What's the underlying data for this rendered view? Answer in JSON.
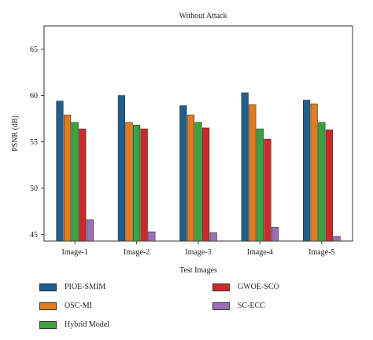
{
  "chart_data": {
    "type": "bar",
    "title": "Without Attack",
    "xlabel": "Test Images",
    "ylabel": "PSNR (dB)",
    "categories": [
      "Image-1",
      "Image-2",
      "Image-3",
      "Image-4",
      "Image-5"
    ],
    "ylim": [
      44.3,
      67.5
    ],
    "yticks": [
      45,
      50,
      55,
      60,
      65
    ],
    "grid": false,
    "legend_position": "below",
    "series": [
      {
        "name": "PIOE-SMIM",
        "color": "#1f5f8b",
        "values": [
          59.4,
          60.0,
          58.9,
          60.3,
          59.5
        ]
      },
      {
        "name": "OSC-MI",
        "color": "#e07b1f",
        "values": [
          57.9,
          57.1,
          57.9,
          59.0,
          59.1
        ]
      },
      {
        "name": "Hybrid Model",
        "color": "#3ba33b",
        "values": [
          57.1,
          56.8,
          57.1,
          56.4,
          57.1
        ]
      },
      {
        "name": "GWOE-SCO",
        "color": "#cc2a2a",
        "values": [
          56.4,
          56.4,
          56.5,
          55.3,
          56.3
        ]
      },
      {
        "name": "SC-ECC",
        "color": "#9b6fb8",
        "values": [
          46.6,
          45.3,
          45.2,
          45.8,
          44.8
        ]
      }
    ]
  }
}
